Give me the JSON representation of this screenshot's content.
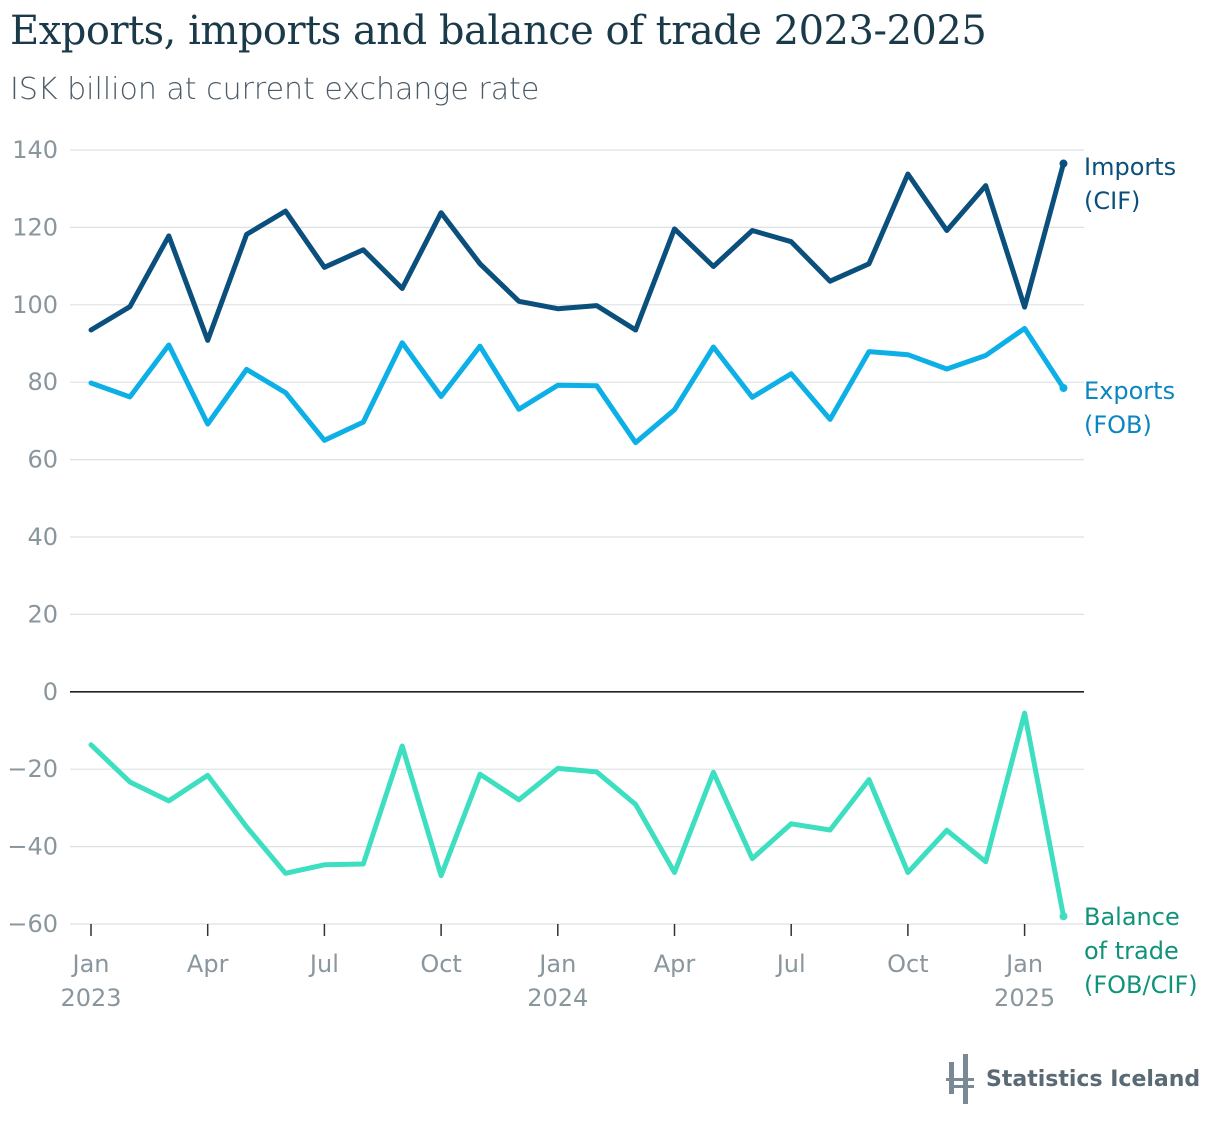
{
  "header": {
    "title": "Exports, imports and balance of trade 2023-2025",
    "subtitle": "ISK billion at current exchange rate"
  },
  "branding": {
    "logo_text": "Statistics Iceland"
  },
  "colors": {
    "imports": "#0b4f7c",
    "exports": "#0db0e6",
    "balance": "#3ddfc0",
    "balance_label": "#10937a",
    "grid": "#dde1e4",
    "zero_line": "#222222"
  },
  "chart_data": {
    "type": "line",
    "title": "Exports, imports and balance of trade 2023-2025",
    "subtitle": "ISK billion at current exchange rate",
    "xlabel": "",
    "ylabel": "",
    "ylim": [
      -60,
      140
    ],
    "yticks": [
      -60,
      -40,
      -20,
      0,
      20,
      40,
      60,
      80,
      100,
      120,
      140
    ],
    "ytick_labels": [
      "−60",
      "−40",
      "−20",
      "0",
      "20",
      "40",
      "60",
      "80",
      "100",
      "120",
      "140"
    ],
    "x_start": "2023-01",
    "x": [
      "2023-01",
      "2023-02",
      "2023-03",
      "2023-04",
      "2023-05",
      "2023-06",
      "2023-07",
      "2023-08",
      "2023-09",
      "2023-10",
      "2023-11",
      "2023-12",
      "2024-01",
      "2024-02",
      "2024-03",
      "2024-04",
      "2024-05",
      "2024-06",
      "2024-07",
      "2024-08",
      "2024-09",
      "2024-10",
      "2024-11",
      "2024-12",
      "2025-01",
      "2025-02"
    ],
    "xticks": [
      {
        "index": 0,
        "month": "Jan",
        "year": "2023"
      },
      {
        "index": 3,
        "month": "Apr",
        "year": ""
      },
      {
        "index": 6,
        "month": "Jul",
        "year": ""
      },
      {
        "index": 9,
        "month": "Oct",
        "year": ""
      },
      {
        "index": 12,
        "month": "Jan",
        "year": "2024"
      },
      {
        "index": 15,
        "month": "Apr",
        "year": ""
      },
      {
        "index": 18,
        "month": "Jul",
        "year": ""
      },
      {
        "index": 21,
        "month": "Oct",
        "year": ""
      },
      {
        "index": 24,
        "month": "Jan",
        "year": "2025"
      }
    ],
    "series": [
      {
        "key": "imports",
        "name": "Imports (CIF)",
        "label_lines": [
          "Imports",
          "(CIF)"
        ],
        "values": [
          93.5,
          99.5,
          117.8,
          90.8,
          118.2,
          124.2,
          109.7,
          114.2,
          104.2,
          123.8,
          110.6,
          100.9,
          99.0,
          99.8,
          93.5,
          119.6,
          109.9,
          119.2,
          116.3,
          106.1,
          110.6,
          133.8,
          119.2,
          130.8,
          99.4,
          136.5
        ]
      },
      {
        "key": "exports",
        "name": "Exports (FOB)",
        "label_lines": [
          "Exports",
          "(FOB)"
        ],
        "values": [
          79.8,
          76.2,
          89.6,
          69.2,
          83.3,
          77.3,
          65.0,
          69.7,
          90.2,
          76.3,
          89.3,
          73.0,
          79.2,
          79.1,
          64.4,
          72.9,
          89.1,
          76.1,
          82.2,
          70.4,
          87.9,
          87.1,
          83.4,
          86.9,
          93.9,
          78.5
        ]
      },
      {
        "key": "balance",
        "name": "Balance of trade (FOB/CIF)",
        "label_lines": [
          "Balance",
          "of trade",
          "(FOB/CIF)"
        ],
        "values": [
          -13.7,
          -23.3,
          -28.2,
          -21.6,
          -34.9,
          -46.9,
          -44.7,
          -44.5,
          -14.0,
          -47.5,
          -21.3,
          -27.9,
          -19.8,
          -20.7,
          -29.1,
          -46.7,
          -20.8,
          -43.1,
          -34.1,
          -35.7,
          -22.7,
          -46.7,
          -35.8,
          -43.9,
          -5.5,
          -58.0
        ]
      }
    ]
  }
}
